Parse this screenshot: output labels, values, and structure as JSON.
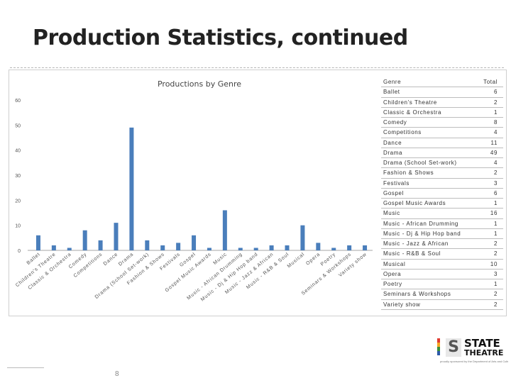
{
  "slide": {
    "title": "Production Statistics, continued",
    "page_number": "8"
  },
  "logo": {
    "line1": "STATE",
    "line2": "THEATRE",
    "mark": "S",
    "tagline": "proudly sponsored by the Department of Arts and Culture"
  },
  "table": {
    "header": {
      "genre": "Genre",
      "total": "Total"
    },
    "rows": [
      {
        "genre": "Ballet",
        "total": "6"
      },
      {
        "genre": "Children's Theatre",
        "total": "2"
      },
      {
        "genre": "Classic & Orchestra",
        "total": "1"
      },
      {
        "genre": "Comedy",
        "total": "8"
      },
      {
        "genre": "Competitions",
        "total": "4"
      },
      {
        "genre": "Dance",
        "total": "11"
      },
      {
        "genre": "Drama",
        "total": "49"
      },
      {
        "genre": "Drama (School Set-work)",
        "total": "4"
      },
      {
        "genre": "Fashion & Shows",
        "total": "2"
      },
      {
        "genre": "Festivals",
        "total": "3"
      },
      {
        "genre": "Gospel",
        "total": "6"
      },
      {
        "genre": "Gospel Music Awards",
        "total": "1"
      },
      {
        "genre": "Music",
        "total": "16"
      },
      {
        "genre": "Music - African Drumming",
        "total": "1"
      },
      {
        "genre": "Music - Dj & Hip Hop band",
        "total": "1"
      },
      {
        "genre": "Music - Jazz & African",
        "total": "2"
      },
      {
        "genre": "Music - R&B & Soul",
        "total": "2"
      },
      {
        "genre": "Musical",
        "total": "10"
      },
      {
        "genre": "Opera",
        "total": "3"
      },
      {
        "genre": "Poetry",
        "total": "1"
      },
      {
        "genre": "Seminars & Workshops",
        "total": "2"
      },
      {
        "genre": "Variety show",
        "total": "2"
      }
    ]
  },
  "colors": {
    "bar": "#4a7ebb",
    "axis": "#a6a6a6",
    "tick_text": "#555555"
  },
  "chart_data": {
    "type": "bar",
    "title": "Productions by Genre",
    "xlabel": "",
    "ylabel": "",
    "ylim": [
      0,
      60
    ],
    "yticks": [
      0,
      10,
      20,
      30,
      40,
      50,
      60
    ],
    "grid": false,
    "legend": "none",
    "categories": [
      "Ballet",
      "Children's Theatre",
      "Classic & Orchestra",
      "Comedy",
      "Competitions",
      "Dance",
      "Drama",
      "Drama (School Set-work)",
      "Fashion & Shows",
      "Festivals",
      "Gospel",
      "Gospel Music Awards",
      "Music",
      "Music - African Drumming",
      "Music - Dj & Hip Hop band",
      "Music - Jazz & African",
      "Music - R&B & Soul",
      "Musical",
      "Opera",
      "Poetry",
      "Seminars & Workshops",
      "Variety show"
    ],
    "values": [
      6,
      2,
      1,
      8,
      4,
      11,
      49,
      4,
      2,
      3,
      6,
      1,
      16,
      1,
      1,
      2,
      2,
      10,
      3,
      1,
      2,
      2
    ]
  }
}
